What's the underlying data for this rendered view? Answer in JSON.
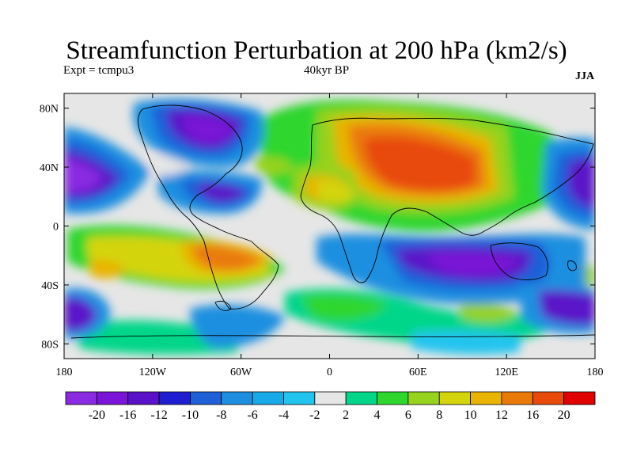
{
  "title": "Streamfunction Perturbation at 200 hPa (km2/s)",
  "subtitle_left": "Expt = tcmpu3",
  "subtitle_center": "40kyr BP",
  "subtitle_right": "JJA",
  "axes": {
    "x_ticks": [
      "180",
      "120W",
      "60W",
      "0",
      "60E",
      "120E",
      "180"
    ],
    "y_ticks": [
      "80N",
      "40N",
      "0",
      "40S",
      "80S"
    ]
  },
  "colorbar": {
    "colors": [
      "#8a2be2",
      "#7a14d6",
      "#5a12c8",
      "#1e1ed0",
      "#1f5fd8",
      "#1e8fe0",
      "#18aae8",
      "#22c4ee",
      "#e6e6e6",
      "#00d68a",
      "#2ed62e",
      "#96d21e",
      "#d4d40c",
      "#e8b400",
      "#ea7a08",
      "#e84a0a",
      "#e00000"
    ],
    "labels": [
      "-20",
      "-16",
      "-12",
      "-10",
      "-8",
      "-6",
      "-4",
      "-2",
      "2",
      "4",
      "6",
      "8",
      "10",
      "12",
      "16",
      "20"
    ]
  }
}
